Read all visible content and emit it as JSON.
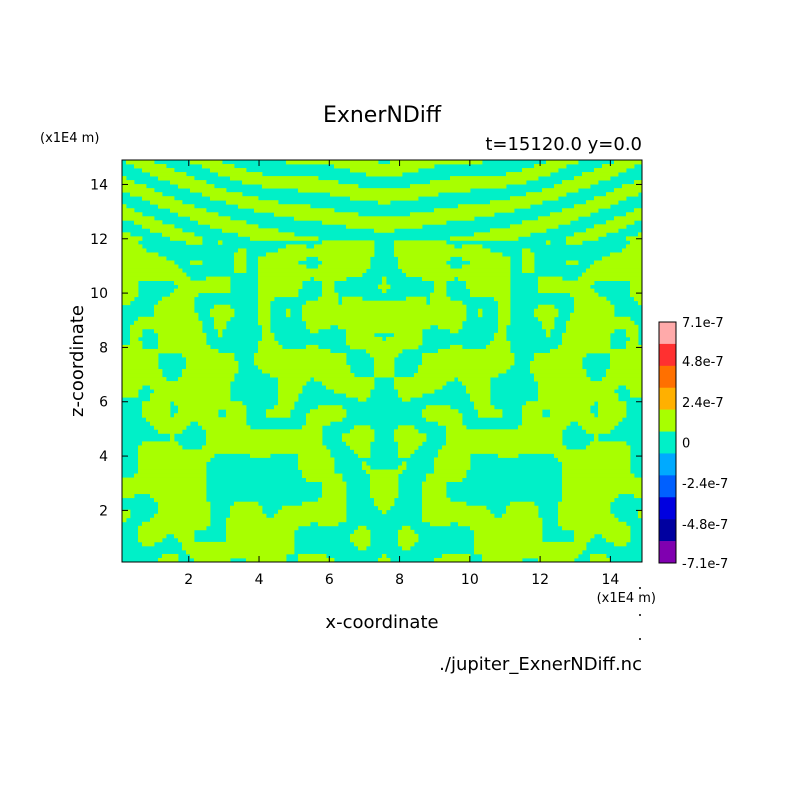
{
  "chart_data": {
    "type": "heatmap",
    "title": "ExnerNDiff",
    "subtitle": "t=15120.0 y=0.0",
    "xlabel": "x-coordinate",
    "ylabel": "z-coordinate",
    "x_unit": "(x1E4 m)",
    "y_unit": "(x1E4 m)",
    "source_label": "./jupiter_ExnerNDiff.nc",
    "xlim": [
      0.1,
      14.9
    ],
    "ylim": [
      0.1,
      14.9
    ],
    "x_ticks": [
      "2",
      "4",
      "6",
      "8",
      "10",
      "12",
      "14"
    ],
    "x_tick_values": [
      2,
      4,
      6,
      8,
      10,
      12,
      14
    ],
    "y_ticks": [
      "2",
      "4",
      "6",
      "8",
      "10",
      "12",
      "14"
    ],
    "y_tick_values": [
      2,
      4,
      6,
      8,
      10,
      12,
      14
    ],
    "colorbar": {
      "labels": [
        "7.1e-7",
        "4.8e-7",
        "2.4e-7",
        "0",
        "-2.4e-7",
        "-4.8e-7",
        "-7.1e-7"
      ],
      "label_values": [
        7.1e-07,
        4.8e-07,
        2.4e-07,
        0,
        -2.4e-07,
        -4.8e-07,
        -7.1e-07
      ],
      "colors_top_to_bottom": [
        "#ffaaaa",
        "#ff3030",
        "#ff7000",
        "#ffb000",
        "#a8ff00",
        "#00f0c8",
        "#00aaff",
        "#0060ff",
        "#0000e0",
        "#0000a0",
        "#8000b0"
      ]
    },
    "field_colors": {
      "positive": "#a8ff00",
      "negative": "#00f0c8"
    }
  }
}
